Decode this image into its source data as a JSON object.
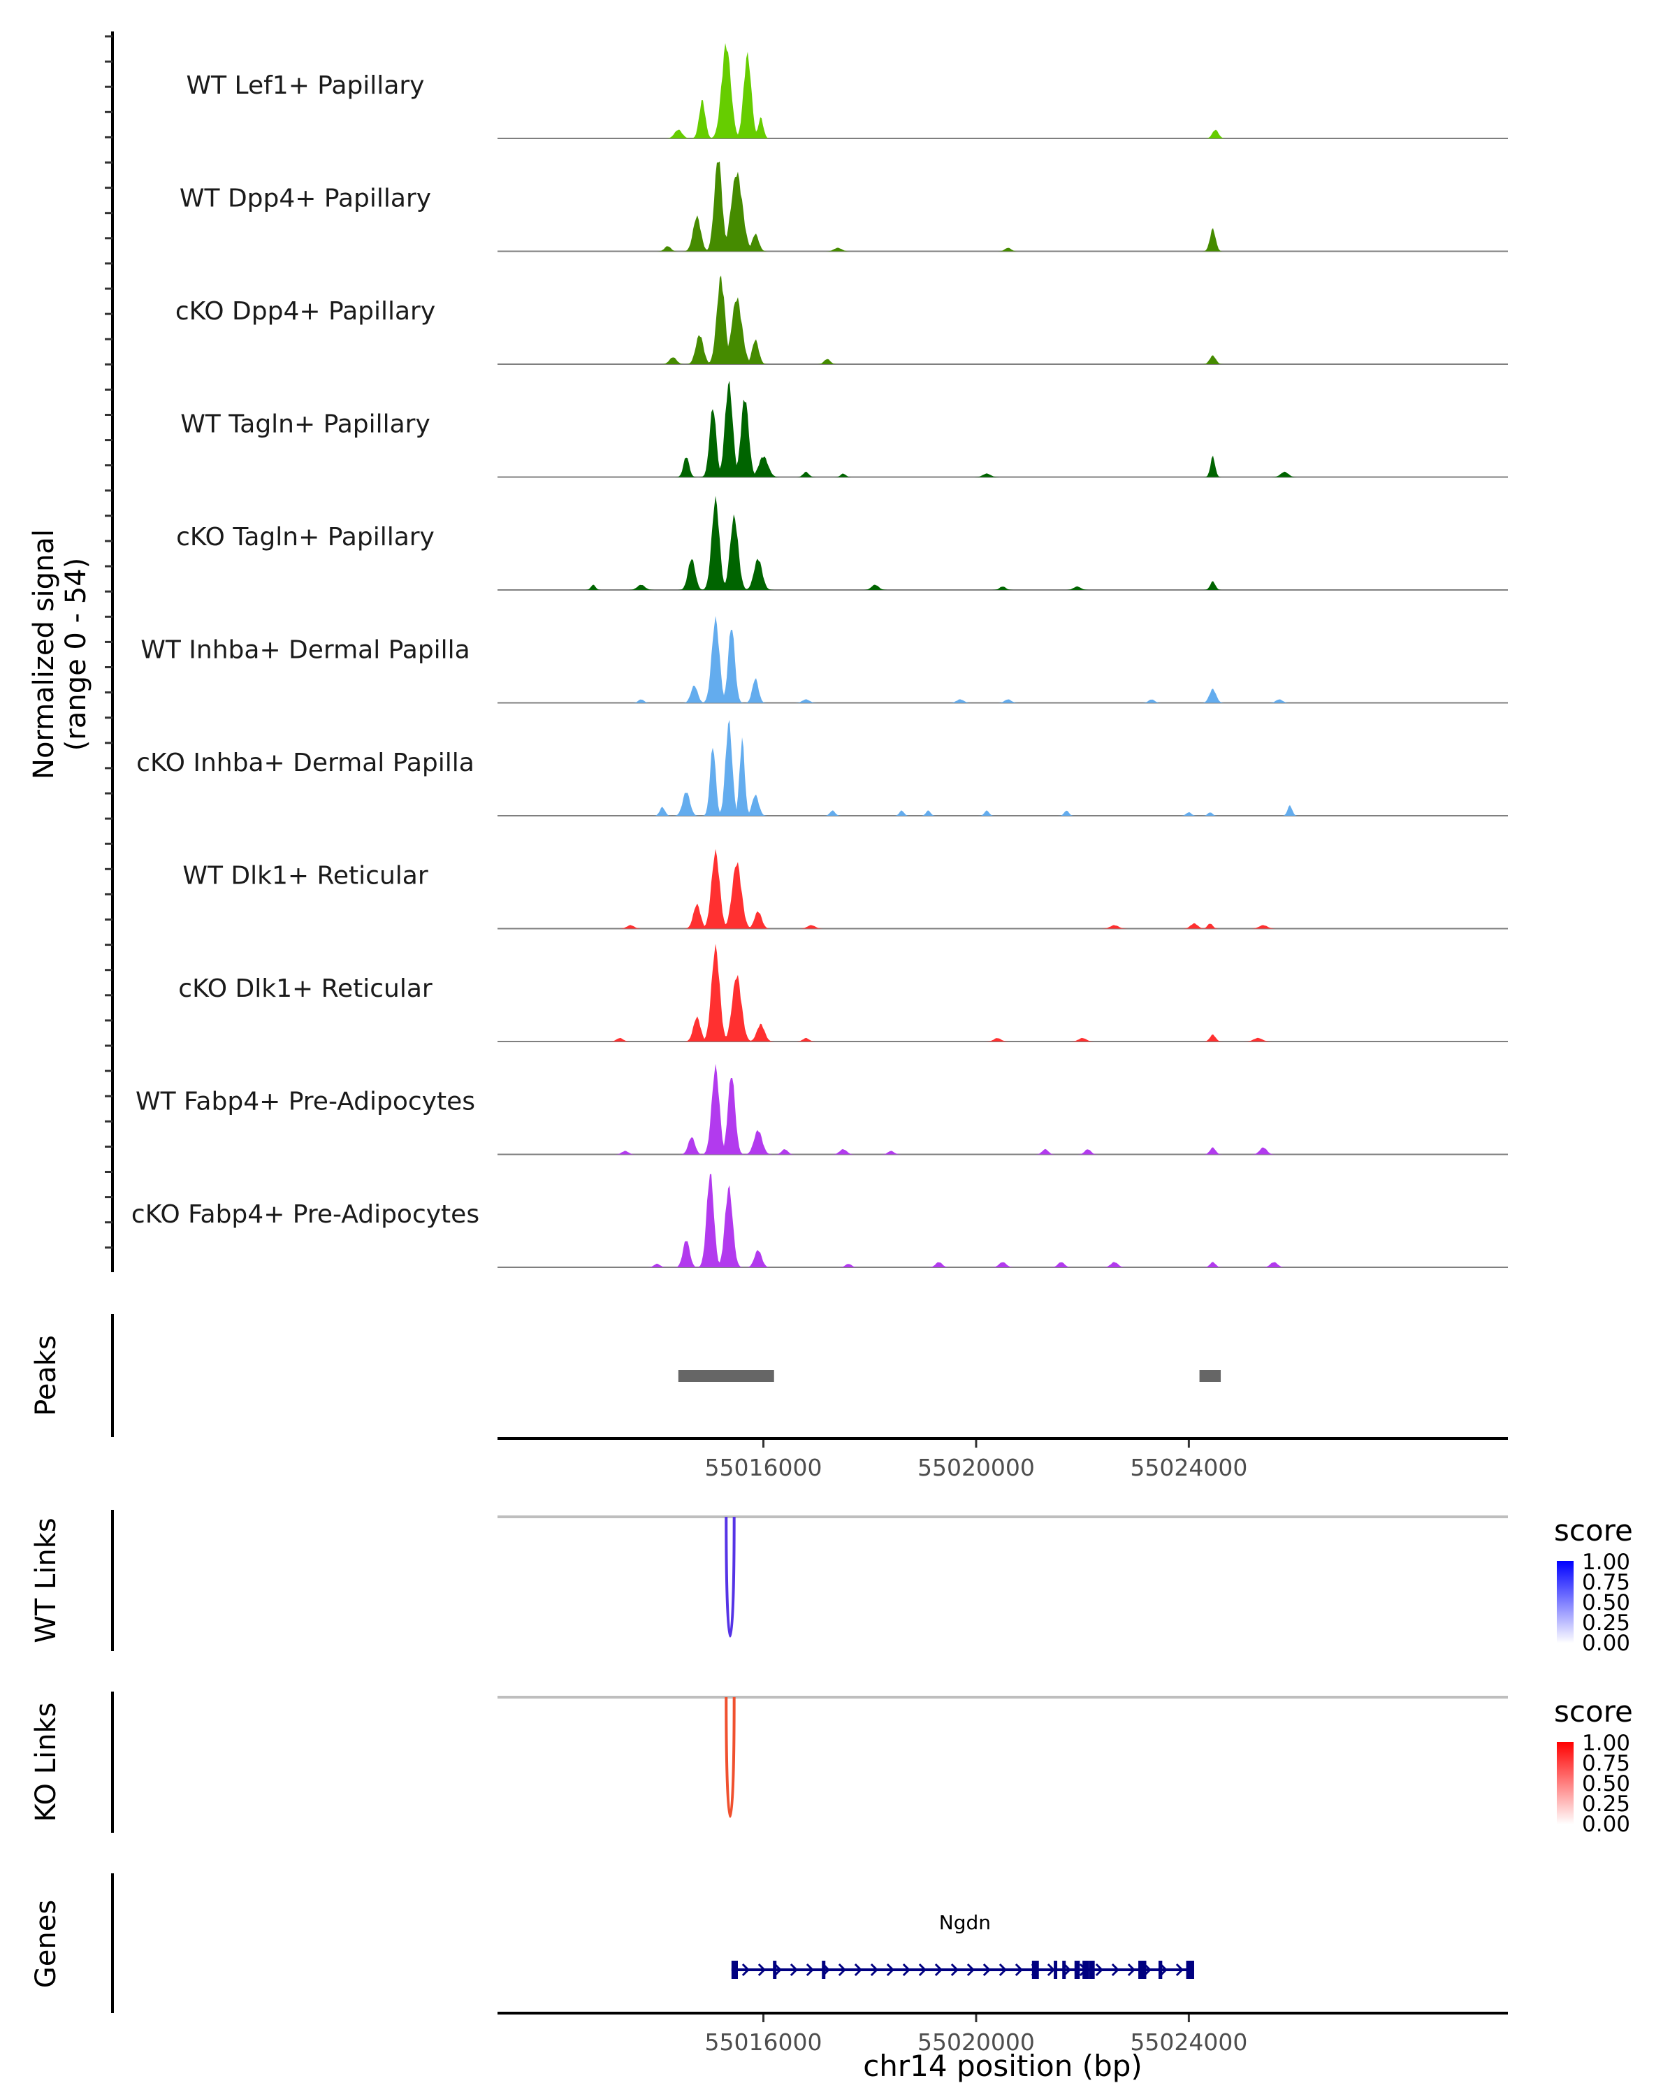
{
  "chart_data": {
    "type": "area",
    "title": "",
    "xlabel": "chr14 position (bp)",
    "xlim": [
      55011000,
      55030000
    ],
    "x_ticks": [
      55016000,
      55020000,
      55024000
    ],
    "x_tick_labels": [
      "55016000",
      "55020000",
      "55024000"
    ],
    "coverage": {
      "ylabel_line1": "Normalized signal",
      "ylabel_line2": "(range 0 - 54)",
      "ylim": [
        0,
        54
      ],
      "tracks": [
        {
          "name": "WT Lef1+ Papillary",
          "color": "#66CD00",
          "peaks": [
            [
              55015300,
              54,
              180
            ],
            [
              55015700,
              48,
              150
            ],
            [
              55014850,
              22,
              120
            ],
            [
              55015950,
              12,
              100
            ],
            [
              55014400,
              5,
              150
            ],
            [
              55024500,
              5,
              120
            ]
          ]
        },
        {
          "name": "WT Dpp4+ Papillary",
          "color": "#458B00",
          "peaks": [
            [
              55015150,
              54,
              150
            ],
            [
              55015500,
              45,
              220
            ],
            [
              55014750,
              20,
              150
            ],
            [
              55015850,
              10,
              130
            ],
            [
              55024450,
              13,
              110
            ],
            [
              55014200,
              3,
              120
            ],
            [
              55017400,
              2,
              150
            ],
            [
              55020600,
              2,
              120
            ]
          ]
        },
        {
          "name": "cKO Dpp4+ Papillary",
          "color": "#458B00",
          "peaks": [
            [
              55015200,
              50,
              160
            ],
            [
              55015500,
              38,
              200
            ],
            [
              55014800,
              17,
              150
            ],
            [
              55015850,
              14,
              130
            ],
            [
              55014300,
              4,
              140
            ],
            [
              55024450,
              5,
              120
            ],
            [
              55017200,
              3,
              120
            ]
          ]
        },
        {
          "name": "WT Tagln+ Papillary",
          "color": "#006400",
          "peaks": [
            [
              55015050,
              40,
              130
            ],
            [
              55015350,
              54,
              150
            ],
            [
              55015650,
              46,
              150
            ],
            [
              55014550,
              12,
              110
            ],
            [
              55016000,
              12,
              180
            ],
            [
              55024450,
              12,
              90
            ],
            [
              55016800,
              3,
              110
            ],
            [
              55017500,
              2,
              100
            ],
            [
              55020200,
              2,
              150
            ],
            [
              55025800,
              3,
              150
            ]
          ]
        },
        {
          "name": "cKO Tagln+ Papillary",
          "color": "#006400",
          "peaks": [
            [
              55015100,
              52,
              150
            ],
            [
              55015450,
              42,
              160
            ],
            [
              55014650,
              18,
              140
            ],
            [
              55015900,
              18,
              160
            ],
            [
              55012800,
              3,
              90
            ],
            [
              55013700,
              3,
              150
            ],
            [
              55024450,
              5,
              100
            ],
            [
              55018100,
              3,
              140
            ],
            [
              55020500,
              2,
              120
            ],
            [
              55021900,
              2,
              140
            ]
          ]
        },
        {
          "name": "WT Inhba+ Dermal Papilla",
          "color": "#63ACEE",
          "peaks": [
            [
              55015100,
              48,
              150
            ],
            [
              55015400,
              44,
              130
            ],
            [
              55014700,
              10,
              130
            ],
            [
              55015850,
              14,
              120
            ],
            [
              55024450,
              8,
              130
            ],
            [
              55013700,
              2,
              110
            ],
            [
              55016800,
              2,
              140
            ],
            [
              55019700,
              2,
              140
            ],
            [
              55020600,
              2,
              130
            ],
            [
              55023300,
              2,
              120
            ],
            [
              55025700,
              2,
              130
            ]
          ]
        },
        {
          "name": "cKO Inhba+ Dermal Papilla",
          "color": "#63ACEE",
          "peaks": [
            [
              55015050,
              40,
              110
            ],
            [
              55015350,
              54,
              130
            ],
            [
              55015600,
              44,
              100
            ],
            [
              55014550,
              14,
              140
            ],
            [
              55015850,
              12,
              130
            ],
            [
              55014100,
              5,
              100
            ],
            [
              55017300,
              3,
              100
            ],
            [
              55018600,
              3,
              90
            ],
            [
              55019100,
              3,
              90
            ],
            [
              55020200,
              3,
              90
            ],
            [
              55021700,
              3,
              90
            ],
            [
              55024000,
              2,
              100
            ],
            [
              55024400,
              2,
              90
            ],
            [
              55025900,
              6,
              90
            ]
          ]
        },
        {
          "name": "WT Dlk1+ Reticular",
          "color": "#FF3030",
          "peaks": [
            [
              55015100,
              44,
              160
            ],
            [
              55015500,
              38,
              180
            ],
            [
              55014750,
              14,
              140
            ],
            [
              55015900,
              10,
              140
            ],
            [
              55024100,
              3,
              140
            ],
            [
              55024400,
              3,
              100
            ],
            [
              55013500,
              2,
              140
            ],
            [
              55016900,
              2,
              150
            ],
            [
              55022600,
              2,
              160
            ],
            [
              55025400,
              2,
              160
            ]
          ]
        },
        {
          "name": "cKO Dlk1+ Reticular",
          "color": "#FF3030",
          "peaks": [
            [
              55015100,
              54,
              160
            ],
            [
              55015500,
              38,
              180
            ],
            [
              55014750,
              14,
              140
            ],
            [
              55015950,
              10,
              150
            ],
            [
              55024450,
              4,
              110
            ],
            [
              55013300,
              2,
              130
            ],
            [
              55016800,
              2,
              120
            ],
            [
              55020400,
              2,
              140
            ],
            [
              55022000,
              2,
              150
            ],
            [
              55025300,
              2,
              170
            ]
          ]
        },
        {
          "name": "WT Fabp4+ Pre-Adipocytes",
          "color": "#B23AEE",
          "peaks": [
            [
              55015100,
              50,
              150
            ],
            [
              55015400,
              46,
              140
            ],
            [
              55014650,
              10,
              130
            ],
            [
              55015900,
              14,
              160
            ],
            [
              55013400,
              2,
              130
            ],
            [
              55016400,
              3,
              120
            ],
            [
              55017500,
              3,
              140
            ],
            [
              55018400,
              2,
              120
            ],
            [
              55021300,
              3,
              120
            ],
            [
              55022100,
              3,
              120
            ],
            [
              55024450,
              4,
              110
            ],
            [
              55025400,
              4,
              140
            ]
          ]
        },
        {
          "name": "cKO Fabp4+ Pre-Adipocytes",
          "color": "#B23AEE",
          "peaks": [
            [
              55015000,
              54,
              140
            ],
            [
              55015350,
              46,
              150
            ],
            [
              55014550,
              16,
              130
            ],
            [
              55015900,
              10,
              140
            ],
            [
              55014000,
              2,
              120
            ],
            [
              55017600,
              2,
              120
            ],
            [
              55019300,
              3,
              130
            ],
            [
              55020500,
              3,
              140
            ],
            [
              55021600,
              3,
              130
            ],
            [
              55022600,
              3,
              140
            ],
            [
              55024450,
              3,
              110
            ],
            [
              55025600,
              3,
              140
            ]
          ]
        }
      ]
    },
    "peaks": {
      "label": "Peaks",
      "regions": [
        [
          55014400,
          55016200
        ],
        [
          55024200,
          55024600
        ]
      ]
    },
    "links": [
      {
        "label": "WT Links",
        "color": "#5533E6",
        "anchors": [
          55015300,
          55015450
        ],
        "score": 1.0
      },
      {
        "label": "KO Links",
        "color": "#F0502E",
        "anchors": [
          55015300,
          55015450
        ],
        "score": 1.0
      }
    ],
    "legends": [
      {
        "title": "score",
        "low_color": "#FFFFFF",
        "high_color": "#0000FF",
        "labels": [
          "1.00",
          "0.75",
          "0.50",
          "0.25",
          "0.00"
        ]
      },
      {
        "title": "score",
        "low_color": "#FFFFFF",
        "high_color": "#FF0000",
        "labels": [
          "1.00",
          "0.75",
          "0.50",
          "0.25",
          "0.00"
        ]
      }
    ],
    "genes": {
      "label": "Genes",
      "color": "#000080",
      "gene": {
        "name": "Ngdn",
        "start": 55015400,
        "end": 55024100,
        "strand": "+",
        "exons": [
          [
            55015400,
            55015520
          ],
          [
            55016180,
            55016240
          ],
          [
            55017100,
            55017150
          ],
          [
            55021050,
            55021180
          ],
          [
            55021460,
            55021500
          ],
          [
            55021620,
            55021660
          ],
          [
            55021850,
            55021950
          ],
          [
            55022000,
            55022120
          ],
          [
            55022120,
            55022230
          ],
          [
            55023050,
            55023200
          ],
          [
            55023430,
            55023500
          ],
          [
            55023950,
            55024100
          ]
        ]
      }
    }
  }
}
